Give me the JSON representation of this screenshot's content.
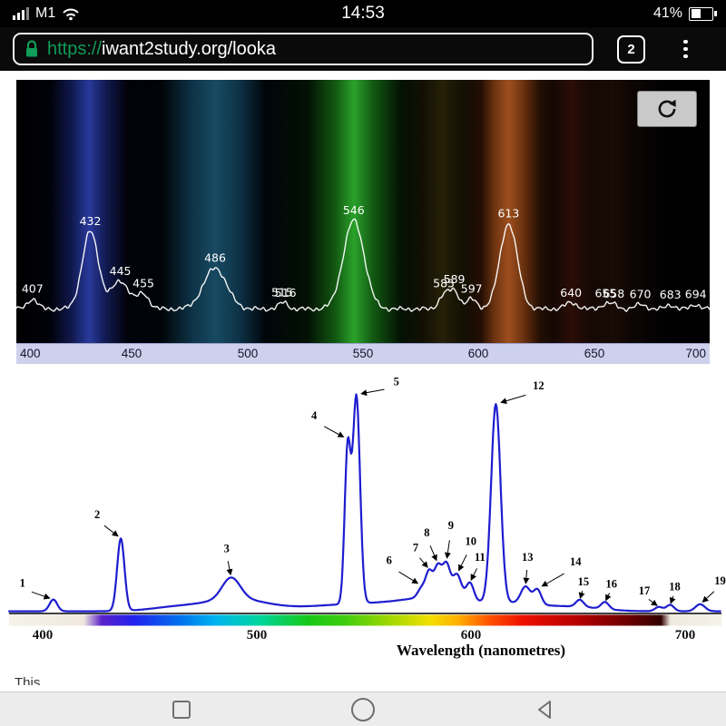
{
  "status_bar": {
    "carrier": "M1",
    "time": "14:53",
    "battery_percent": "41%"
  },
  "browser": {
    "scheme": "https://",
    "url": "iwant2study.org/looka",
    "tab_count": "2"
  },
  "page": {
    "clipped_text": "This"
  },
  "colors": {
    "secure_green": "#0f9d58",
    "top_curve": "#ffffff",
    "bottom_curve": "#1d1dcf",
    "axis_strip_bg": "#cdd1ec",
    "panel_bg": "#000000"
  },
  "simulation": {
    "reset_icon": "circular-reset-arrow"
  },
  "chart_data": [
    {
      "type": "line",
      "title": "",
      "xlabel": "",
      "ylabel": "",
      "xlim": [
        400,
        700
      ],
      "x_ticks": [
        400,
        450,
        500,
        550,
        600,
        650,
        700
      ],
      "line_color": "#ffffff",
      "background": "black panel with colored emission bands",
      "band_gradient_stops": [
        [
          0,
          "#000000"
        ],
        [
          0.05,
          "#01020a"
        ],
        [
          0.08,
          "#10194e"
        ],
        [
          0.105,
          "#29399b"
        ],
        [
          0.13,
          "#10194e"
        ],
        [
          0.16,
          "#01020a"
        ],
        [
          0.21,
          "#000509"
        ],
        [
          0.255,
          "#0e3448"
        ],
        [
          0.287,
          "#174a62"
        ],
        [
          0.32,
          "#0e3448"
        ],
        [
          0.36,
          "#000509"
        ],
        [
          0.42,
          "#031103"
        ],
        [
          0.46,
          "#125812"
        ],
        [
          0.487,
          "#2aa22a"
        ],
        [
          0.515,
          "#125812"
        ],
        [
          0.555,
          "#031103"
        ],
        [
          0.585,
          "#120f03"
        ],
        [
          0.615,
          "#262007"
        ],
        [
          0.645,
          "#120f03"
        ],
        [
          0.67,
          "#230e03"
        ],
        [
          0.69,
          "#6e3410"
        ],
        [
          0.71,
          "#9e4f1e"
        ],
        [
          0.73,
          "#6e3410"
        ],
        [
          0.755,
          "#230e03"
        ],
        [
          0.775,
          "#150803"
        ],
        [
          0.8,
          "#2a0e06"
        ],
        [
          0.83,
          "#150803"
        ],
        [
          0.86,
          "#190b05"
        ],
        [
          0.89,
          "#0c0503"
        ],
        [
          0.93,
          "#020101"
        ],
        [
          1,
          "#000000"
        ]
      ],
      "peaks": [
        {
          "label": "407",
          "nm": 407,
          "h": 0.09,
          "s": 2.2
        },
        {
          "label": "432",
          "nm": 432,
          "h": 0.7,
          "s": 3.5
        },
        {
          "label": "445",
          "nm": 445,
          "h": 0.25,
          "s": 4
        },
        {
          "label": "455",
          "nm": 455,
          "h": 0.13,
          "s": 2.5
        },
        {
          "label": "486",
          "nm": 486,
          "h": 0.37,
          "s": 5
        },
        {
          "label": "515",
          "nm": 515,
          "h": 0.045,
          "s": 2
        },
        {
          "label": "516",
          "nm": 516.5,
          "h": 0.02,
          "s": 1.5
        },
        {
          "label": "546",
          "nm": 546,
          "h": 0.8,
          "s": 4.5
        },
        {
          "label": "585",
          "nm": 585,
          "h": 0.12,
          "s": 2.2
        },
        {
          "label": "589",
          "nm": 589.5,
          "h": 0.16,
          "s": 2.2
        },
        {
          "label": "597",
          "nm": 597,
          "h": 0.09,
          "s": 2.2
        },
        {
          "label": "613",
          "nm": 613,
          "h": 0.77,
          "s": 3.8
        },
        {
          "label": "640",
          "nm": 640,
          "h": 0.055,
          "s": 2.8
        },
        {
          "label": "655",
          "nm": 655,
          "h": 0.045,
          "s": 2
        },
        {
          "label": "658",
          "nm": 658.5,
          "h": 0.035,
          "s": 1.8
        },
        {
          "label": "670",
          "nm": 670,
          "h": 0.04,
          "s": 2.4
        },
        {
          "label": "683",
          "nm": 683,
          "h": 0.035,
          "s": 2
        },
        {
          "label": "694",
          "nm": 694,
          "h": 0.04,
          "s": 2
        }
      ]
    },
    {
      "type": "line",
      "title": "",
      "xlabel": "Wavelength (nanometres)",
      "ylabel": "",
      "xlim": [
        384,
        717
      ],
      "x_ticks": [
        400,
        500,
        600,
        700
      ],
      "line_color": "#1d1dcf",
      "peaks": [
        {
          "n": "1",
          "nm": 405,
          "h": 0.055,
          "s": 1.8,
          "dx": -34,
          "dy": -14
        },
        {
          "n": "2",
          "nm": 436.5,
          "h": 0.34,
          "s": 1.7,
          "dx": -26,
          "dy": -22
        },
        {
          "n": "3",
          "nm": 488,
          "h": 0.1,
          "s": 4.2,
          "dx": -5,
          "dy": -28
        },
        {
          "n": "4",
          "nm": 542.4,
          "h": 0.72,
          "s": 1.4,
          "dx": -37,
          "dy": -22
        },
        {
          "n": "5",
          "nm": 546.5,
          "h": 0.97,
          "s": 1.7,
          "dx": 44,
          "dy": -10
        },
        {
          "n": "6",
          "nm": 577,
          "h": 0.045,
          "s": 1.8,
          "dx": -36,
          "dy": -24
        },
        {
          "n": "7",
          "nm": 580.5,
          "h": 0.115,
          "s": 1.6,
          "dx": -15,
          "dy": -20
        },
        {
          "n": "8",
          "nm": 584.5,
          "h": 0.14,
          "s": 1.7,
          "dx": -12,
          "dy": -30
        },
        {
          "n": "9",
          "nm": 588.5,
          "h": 0.155,
          "s": 1.8,
          "dx": 5,
          "dy": -36
        },
        {
          "n": "10",
          "nm": 593.5,
          "h": 0.115,
          "s": 2,
          "dx": 15,
          "dy": -32
        },
        {
          "n": "11",
          "nm": 599.5,
          "h": 0.085,
          "s": 1.8,
          "dx": 11,
          "dy": -24
        },
        {
          "n": "12",
          "nm": 611.6,
          "h": 0.93,
          "s": 2.2,
          "dx": 47,
          "dy": -16
        },
        {
          "n": "13",
          "nm": 625.5,
          "h": 0.08,
          "s": 2.2,
          "dx": 2,
          "dy": -28
        },
        {
          "n": "14",
          "nm": 631,
          "h": 0.07,
          "s": 1.8,
          "dx": 42,
          "dy": -26
        },
        {
          "n": "15",
          "nm": 650.8,
          "h": 0.033,
          "s": 1.8,
          "dx": 4,
          "dy": -16
        },
        {
          "n": "16",
          "nm": 662.6,
          "h": 0.033,
          "s": 1.8,
          "dx": 7,
          "dy": -16
        },
        {
          "n": "17",
          "nm": 687.7,
          "h": 0.02,
          "s": 1.8,
          "dx": -16,
          "dy": -14
        },
        {
          "n": "18",
          "nm": 693,
          "h": 0.03,
          "s": 1.8,
          "dx": 5,
          "dy": -16
        },
        {
          "n": "19",
          "nm": 707,
          "h": 0.033,
          "s": 2.2,
          "dx": 22,
          "dy": -22
        }
      ],
      "continuum": [
        {
          "nm": 462,
          "h": 0.018,
          "s": 12
        },
        {
          "nm": 490,
          "h": 0.055,
          "s": 14
        },
        {
          "nm": 550,
          "h": 0.035,
          "s": 26
        },
        {
          "nm": 585,
          "h": 0.05,
          "s": 15
        },
        {
          "nm": 620,
          "h": 0.035,
          "s": 14
        },
        {
          "nm": 650,
          "h": 0.018,
          "s": 12
        }
      ],
      "colorbar_stops": [
        [
          0,
          "#f6f2ea"
        ],
        [
          0.105,
          "#efe8de"
        ],
        [
          0.13,
          "#5b21c8"
        ],
        [
          0.175,
          "#2222ee"
        ],
        [
          0.245,
          "#0077ee"
        ],
        [
          0.29,
          "#00b4f0"
        ],
        [
          0.35,
          "#00d6a0"
        ],
        [
          0.42,
          "#16c816"
        ],
        [
          0.47,
          "#3ecc10"
        ],
        [
          0.53,
          "#9ad800"
        ],
        [
          0.59,
          "#f2e000"
        ],
        [
          0.63,
          "#ffb000"
        ],
        [
          0.675,
          "#ff5000"
        ],
        [
          0.72,
          "#ee1000"
        ],
        [
          0.8,
          "#b40000"
        ],
        [
          0.87,
          "#6a0000"
        ],
        [
          0.915,
          "#320000"
        ],
        [
          0.928,
          "#efe8de"
        ],
        [
          1,
          "#f6f2ea"
        ]
      ]
    }
  ]
}
